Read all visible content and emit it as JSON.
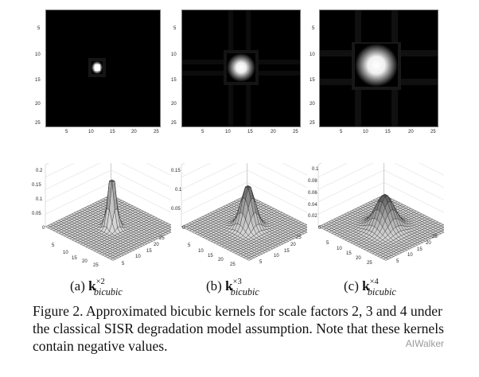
{
  "figure": {
    "panels": [
      {
        "id": "a",
        "heatmap": {
          "yticks": [
            "5",
            "10",
            "15",
            "20",
            "25"
          ],
          "xticks": [
            "5",
            "10",
            "15",
            "20",
            "25"
          ]
        },
        "surface": {
          "zticks": [
            "0.2",
            "0.15",
            "0.1",
            "0.05",
            "0"
          ],
          "left_axis_ticks": [
            "5",
            "10",
            "15",
            "20",
            "25"
          ],
          "right_axis_ticks": [
            "5",
            "10",
            "15",
            "20",
            "25"
          ],
          "peak": 0.2
        },
        "caption_prefix": "(a) ",
        "caption_k": "k",
        "caption_sup": "×2",
        "caption_sub": "bicubic"
      },
      {
        "id": "b",
        "heatmap": {
          "yticks": [
            "5",
            "10",
            "15",
            "20",
            "25"
          ],
          "xticks": [
            "5",
            "10",
            "15",
            "20",
            "25"
          ]
        },
        "surface": {
          "zticks": [
            "0.15",
            "0.1",
            "0.05",
            "0"
          ],
          "left_axis_ticks": [
            "5",
            "10",
            "15",
            "20",
            "25"
          ],
          "right_axis_ticks": [
            "5",
            "10",
            "15",
            "20",
            "25"
          ],
          "peak": 0.1
        },
        "caption_prefix": "(b) ",
        "caption_k": "k",
        "caption_sup": "×3",
        "caption_sub": "bicubic"
      },
      {
        "id": "c",
        "heatmap": {
          "yticks": [
            "5",
            "10",
            "15",
            "20",
            "25"
          ],
          "xticks": [
            "5",
            "10",
            "15",
            "20",
            "25"
          ]
        },
        "surface": {
          "zticks": [
            "0.1",
            "0.08",
            "0.06",
            "0.04",
            "0.02",
            "0"
          ],
          "left_axis_ticks": [
            "5",
            "10",
            "15",
            "20",
            "25"
          ],
          "right_axis_ticks": [
            "5",
            "10",
            "15",
            "20",
            "25"
          ],
          "peak": 0.06
        },
        "caption_prefix": "(c) ",
        "caption_k": "k",
        "caption_sup": "×4",
        "caption_sub": "bicubic"
      }
    ],
    "caption": "Figure 2. Approximated bicubic kernels for scale factors 2, 3 and 4 under the classical SISR degradation model assumption.  Note that these kernels contain negative values."
  },
  "watermark": "AIWalker",
  "colors": {
    "background": "#ffffff",
    "heatmap_bg": "#000000",
    "text": "#111111",
    "watermark": "#9a9a9a"
  }
}
